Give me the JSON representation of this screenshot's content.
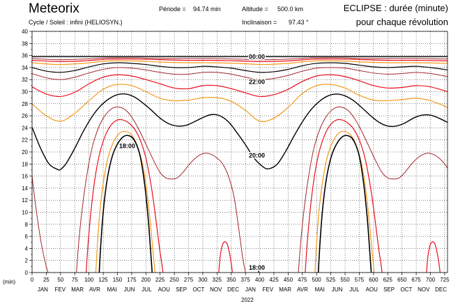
{
  "header": {
    "title": "Meteorix",
    "subtitle": "Cycle / Soleil : infini (HELIOSYN.)",
    "period_label": "Période =",
    "period_value": "94.74 min",
    "altitude_label": "Altitude =",
    "altitude_value": "500.0 km",
    "inclination_label": "Inclinaison =",
    "inclination_value": "97.43 °",
    "chart_title_line1": "ECLIPSE : durée (minute)",
    "chart_title_line2": "pour chaque révolution"
  },
  "colors": {
    "grid": "#000000",
    "black": "#000000",
    "red": "#e8101c",
    "darkred": "#a3262c",
    "orange": "#f39a1c"
  },
  "chart_data": {
    "type": "line",
    "title": "ECLIPSE : durée (minute) pour chaque révolution",
    "ylabel": "(min)",
    "xlabel": "2022",
    "xlim": [
      0,
      730
    ],
    "ylim": [
      0,
      40
    ],
    "x_ticks": [
      0,
      25,
      50,
      75,
      100,
      125,
      150,
      175,
      200,
      225,
      250,
      275,
      300,
      325,
      350,
      375,
      400,
      425,
      450,
      475,
      500,
      525,
      550,
      575,
      600,
      625,
      650,
      675,
      700,
      725
    ],
    "y_ticks": [
      0,
      2,
      4,
      6,
      8,
      10,
      12,
      14,
      16,
      18,
      20,
      22,
      24,
      26,
      28,
      30,
      32,
      34,
      36,
      38,
      40
    ],
    "months": [
      "JAN",
      "FEV",
      "MAR",
      "AVR",
      "MAI",
      "JUN",
      "JUL",
      "AOU",
      "SEP",
      "OCT",
      "NOV",
      "DEC",
      "JAN",
      "FEV",
      "MAR",
      "AVR",
      "MAI",
      "JUN",
      "JUL",
      "AOU",
      "SEP",
      "OCT",
      "NOV",
      "DEC"
    ],
    "year_label": "2022",
    "annotations": [
      {
        "text": "00:00",
        "x": 395,
        "y": 35.8
      },
      {
        "text": "22:00",
        "x": 395,
        "y": 31.6
      },
      {
        "text": "20:00",
        "x": 395,
        "y": 19.4
      },
      {
        "text": "18:00",
        "x": 167,
        "y": 21.0
      },
      {
        "text": "18:00",
        "x": 395,
        "y": 0.8
      }
    ],
    "series": [
      {
        "color": "black",
        "width": 1.4,
        "x": [
          0,
          15,
          30,
          45,
          60,
          75,
          90,
          105,
          120,
          135,
          150,
          165,
          180,
          195,
          210,
          225,
          240,
          255,
          270,
          285,
          300,
          315,
          330,
          345,
          360,
          375,
          390,
          405,
          420,
          435,
          450,
          465,
          480,
          495,
          510,
          525,
          540,
          555,
          570,
          585,
          600,
          615,
          630,
          645,
          660,
          675,
          690,
          705,
          720,
          730
        ],
        "y": [
          35.8,
          35.8,
          35.8,
          35.8,
          35.8,
          35.8,
          35.8,
          35.8,
          35.8,
          35.8,
          35.8,
          35.8,
          35.8,
          35.8,
          35.8,
          35.8,
          35.8,
          35.8,
          35.8,
          35.8,
          35.8,
          35.8,
          35.8,
          35.8,
          35.8,
          35.8,
          35.8,
          35.8,
          35.8,
          35.8,
          35.8,
          35.8,
          35.8,
          35.8,
          35.8,
          35.8,
          35.8,
          35.8,
          35.8,
          35.8,
          35.8,
          35.8,
          35.8,
          35.8,
          35.8,
          35.8,
          35.8,
          35.8,
          35.8,
          35.8
        ]
      },
      {
        "color": "darkred",
        "width": 1,
        "x": [
          0,
          45,
          90,
          135,
          180,
          225,
          270,
          315,
          360,
          405,
          450,
          495,
          540,
          585,
          630,
          675,
          730
        ],
        "y": [
          35.5,
          35.3,
          35.4,
          35.6,
          35.6,
          35.5,
          35.5,
          35.5,
          35.4,
          35.3,
          35.4,
          35.6,
          35.6,
          35.5,
          35.5,
          35.5,
          35.4
        ]
      },
      {
        "color": "red",
        "width": 1.2,
        "x": [
          0,
          45,
          90,
          135,
          180,
          225,
          270,
          315,
          360,
          405,
          450,
          495,
          540,
          585,
          630,
          675,
          730
        ],
        "y": [
          35.2,
          35.0,
          35.1,
          35.4,
          35.4,
          35.3,
          35.2,
          35.2,
          35.1,
          35.0,
          35.1,
          35.4,
          35.4,
          35.3,
          35.2,
          35.2,
          35.1
        ]
      },
      {
        "color": "orange",
        "width": 1.2,
        "x": [
          0,
          45,
          90,
          135,
          180,
          225,
          270,
          315,
          360,
          405,
          450,
          495,
          540,
          585,
          630,
          675,
          730
        ],
        "y": [
          34.8,
          34.5,
          34.7,
          35.1,
          35.1,
          34.9,
          34.8,
          34.8,
          34.7,
          34.5,
          34.7,
          35.1,
          35.1,
          34.9,
          34.8,
          34.8,
          34.7
        ]
      },
      {
        "color": "black",
        "width": 1.2,
        "x": [
          0,
          25,
          50,
          75,
          100,
          125,
          150,
          175,
          200,
          225,
          250,
          275,
          300,
          325,
          350,
          375,
          400,
          425,
          450,
          475,
          500,
          525,
          550,
          575,
          600,
          625,
          650,
          675,
          700,
          730
        ],
        "y": [
          34.0,
          33.4,
          33.2,
          33.5,
          34.1,
          34.6,
          34.8,
          34.7,
          34.5,
          34.2,
          34.0,
          34.0,
          34.2,
          34.1,
          33.9,
          33.5,
          33.2,
          33.3,
          33.7,
          34.3,
          34.7,
          34.8,
          34.7,
          34.4,
          34.1,
          34.0,
          34.1,
          34.2,
          34.0,
          33.6
        ]
      },
      {
        "color": "darkred",
        "width": 1,
        "x": [
          0,
          25,
          50,
          75,
          100,
          125,
          150,
          175,
          200,
          225,
          250,
          275,
          300,
          325,
          350,
          375,
          400,
          425,
          450,
          475,
          500,
          525,
          550,
          575,
          600,
          625,
          650,
          675,
          700,
          730
        ],
        "y": [
          33.0,
          32.3,
          32.0,
          32.4,
          33.1,
          33.7,
          34.0,
          33.9,
          33.6,
          33.2,
          32.9,
          32.9,
          33.2,
          33.2,
          32.9,
          32.4,
          32.0,
          32.2,
          32.7,
          33.4,
          33.9,
          34.0,
          33.9,
          33.5,
          33.1,
          32.9,
          33.0,
          33.2,
          33.0,
          32.5
        ]
      },
      {
        "color": "red",
        "width": 1.2,
        "x": [
          0,
          25,
          50,
          75,
          100,
          125,
          150,
          175,
          200,
          225,
          250,
          275,
          300,
          325,
          350,
          375,
          400,
          425,
          450,
          475,
          500,
          525,
          550,
          575,
          600,
          625,
          650,
          675,
          700,
          730
        ],
        "y": [
          30.8,
          29.6,
          29.2,
          29.9,
          31.3,
          32.4,
          32.8,
          32.6,
          32.0,
          31.3,
          30.6,
          30.5,
          31.0,
          31.0,
          30.5,
          29.8,
          29.2,
          29.5,
          30.4,
          31.7,
          32.6,
          32.8,
          32.5,
          31.8,
          31.0,
          30.6,
          30.7,
          31.0,
          30.8,
          30.0
        ]
      },
      {
        "color": "orange",
        "width": 1.2,
        "x": [
          0,
          25,
          50,
          75,
          100,
          125,
          150,
          175,
          200,
          225,
          250,
          275,
          300,
          325,
          350,
          375,
          400,
          425,
          450,
          475,
          500,
          525,
          550,
          575,
          600,
          625,
          650,
          675,
          700,
          730
        ],
        "y": [
          28.0,
          26.0,
          25.1,
          26.4,
          28.5,
          30.4,
          31.2,
          31.0,
          30.0,
          28.9,
          28.5,
          28.6,
          29.0,
          29.0,
          28.4,
          26.9,
          25.1,
          25.6,
          27.4,
          29.7,
          31.0,
          31.2,
          30.6,
          29.4,
          28.6,
          28.5,
          28.7,
          28.9,
          28.5,
          27.4
        ]
      },
      {
        "color": "black",
        "width": 1.4,
        "x": [
          0,
          15,
          30,
          45,
          50,
          60,
          75,
          90,
          105,
          120,
          135,
          150,
          165,
          180,
          195,
          210,
          225,
          240,
          255,
          270,
          285,
          300,
          315,
          330,
          345,
          360,
          375,
          390,
          405,
          415,
          430,
          445,
          460,
          475,
          490,
          505,
          520,
          535,
          550,
          565,
          580,
          595,
          610,
          625,
          640,
          655,
          670,
          685,
          700,
          715,
          730
        ],
        "y": [
          24.1,
          20.6,
          18.0,
          17.1,
          17.1,
          18.1,
          20.6,
          23.4,
          25.8,
          27.6,
          28.8,
          29.5,
          29.6,
          29.1,
          28.1,
          26.9,
          25.6,
          24.7,
          24.3,
          24.4,
          25.0,
          25.7,
          26.2,
          26.0,
          25.0,
          23.2,
          21.2,
          19.0,
          17.6,
          17.2,
          17.9,
          20.0,
          22.6,
          25.0,
          27.0,
          28.4,
          29.3,
          29.6,
          29.3,
          28.5,
          27.3,
          26.0,
          24.9,
          24.3,
          24.3,
          24.8,
          25.6,
          26.1,
          26.1,
          25.6,
          24.9
        ]
      },
      {
        "color": "darkred",
        "width": 1,
        "x": [
          0,
          5,
          10,
          15,
          20,
          25,
          28
        ],
        "y": [
          16.0,
          12.0,
          8.5,
          5.5,
          3.0,
          1.0,
          0
        ]
      },
      {
        "color": "darkred",
        "width": 1,
        "x": [
          78,
          82,
          88,
          96,
          105,
          115,
          125,
          135,
          145,
          155,
          165,
          175,
          185,
          195,
          205,
          215,
          225,
          235,
          245,
          255,
          265,
          275,
          285,
          295,
          305,
          315,
          325,
          335,
          345,
          355,
          365,
          370,
          375
        ],
        "y": [
          0,
          5.0,
          10.5,
          16.0,
          20.5,
          23.6,
          25.6,
          26.8,
          27.4,
          27.4,
          26.9,
          25.8,
          24.2,
          22.3,
          20.3,
          18.3,
          16.6,
          15.7,
          15.5,
          15.7,
          16.6,
          17.8,
          18.8,
          19.5,
          19.8,
          19.6,
          19.0,
          18.0,
          16.0,
          12.5,
          6.0,
          2.5,
          0
        ]
      },
      {
        "color": "darkred",
        "width": 1,
        "x": [
          468,
          472,
          478,
          486,
          495,
          505,
          515,
          525,
          535,
          545,
          555,
          565,
          575,
          585,
          595,
          605,
          615,
          625,
          635,
          645,
          655,
          665,
          675,
          685,
          695,
          705,
          715,
          725,
          730
        ],
        "y": [
          0,
          5.0,
          10.5,
          16.0,
          20.5,
          23.6,
          25.6,
          26.8,
          27.4,
          27.4,
          26.9,
          25.8,
          24.2,
          22.3,
          20.3,
          18.3,
          16.6,
          15.7,
          15.5,
          15.7,
          16.6,
          17.8,
          18.8,
          19.5,
          19.8,
          19.6,
          19.0,
          18.0,
          17.3
        ]
      },
      {
        "color": "red",
        "width": 1.2,
        "x": [
          95,
          99,
          105,
          112,
          120,
          130,
          140,
          150,
          160,
          170,
          180,
          190,
          200,
          210,
          218,
          224,
          228,
          230
        ],
        "y": [
          0,
          5.5,
          11.5,
          16.5,
          20.2,
          23.0,
          24.6,
          25.3,
          25.3,
          24.8,
          23.8,
          22.0,
          19.0,
          14.0,
          8.5,
          4.0,
          1.5,
          0
        ]
      },
      {
        "color": "red",
        "width": 1.2,
        "x": [
          480,
          484,
          490,
          497,
          505,
          515,
          525,
          535,
          545,
          555,
          565,
          575,
          585,
          595,
          603,
          609,
          613,
          615
        ],
        "y": [
          0,
          5.5,
          11.5,
          16.5,
          20.2,
          23.0,
          24.6,
          25.3,
          25.3,
          24.8,
          23.8,
          22.0,
          19.0,
          14.0,
          8.5,
          4.0,
          1.5,
          0
        ]
      },
      {
        "color": "orange",
        "width": 1.2,
        "x": [
          112,
          115,
          120,
          127,
          135,
          145,
          155,
          165,
          175,
          185,
          195,
          203,
          209,
          213,
          216
        ],
        "y": [
          0,
          5.0,
          11.0,
          16.0,
          19.6,
          22.0,
          23.2,
          23.4,
          22.8,
          21.0,
          17.5,
          12.5,
          7.0,
          3.0,
          0
        ]
      },
      {
        "color": "orange",
        "width": 1.2,
        "x": [
          497,
          500,
          505,
          512,
          520,
          530,
          540,
          550,
          560,
          570,
          580,
          588,
          594,
          598,
          601
        ],
        "y": [
          0,
          5.0,
          11.0,
          16.0,
          19.6,
          22.0,
          23.2,
          23.4,
          22.8,
          21.0,
          17.5,
          12.5,
          7.0,
          3.0,
          0
        ]
      },
      {
        "color": "black",
        "width": 1.6,
        "x": [
          118,
          121,
          126,
          133,
          141,
          150,
          160,
          170,
          180,
          190,
          198,
          204,
          208,
          211
        ],
        "y": [
          0,
          5.0,
          11.0,
          16.0,
          19.3,
          21.3,
          22.5,
          22.7,
          21.9,
          19.3,
          14.5,
          9.0,
          4.0,
          0
        ]
      },
      {
        "color": "black",
        "width": 1.6,
        "x": [
          503,
          506,
          511,
          518,
          526,
          535,
          545,
          555,
          565,
          575,
          583,
          589,
          593,
          596
        ],
        "y": [
          0,
          5.0,
          11.0,
          16.0,
          19.3,
          21.3,
          22.5,
          22.7,
          21.9,
          19.3,
          14.5,
          9.0,
          4.0,
          0
        ]
      },
      {
        "color": "red",
        "width": 1.2,
        "x": [
          328,
          331,
          335,
          339,
          343,
          347,
          350,
          352
        ],
        "y": [
          0,
          3.0,
          4.7,
          5.1,
          4.7,
          3.2,
          1.5,
          0
        ]
      },
      {
        "color": "red",
        "width": 1.2,
        "x": [
          693,
          696,
          700,
          704,
          708,
          712,
          715,
          717
        ],
        "y": [
          0,
          3.0,
          4.7,
          5.1,
          4.7,
          3.2,
          1.5,
          0
        ]
      },
      {
        "color": "black",
        "width": 1.4,
        "x": [
          398,
          398
        ],
        "y": [
          0,
          1.0
        ]
      }
    ]
  }
}
